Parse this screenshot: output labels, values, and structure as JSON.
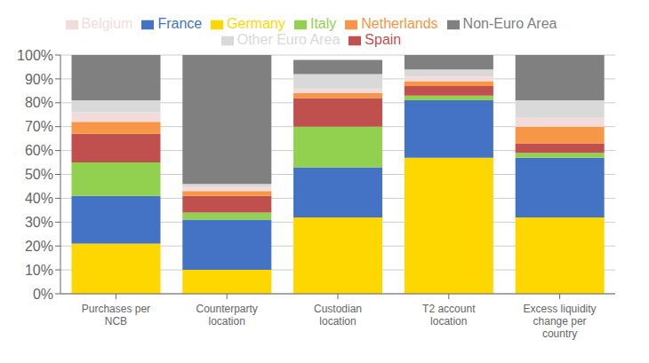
{
  "chart_data": {
    "type": "bar",
    "stacked": true,
    "categories": [
      "Purchases per\nNCB",
      "Counterparty\nlocation",
      "Custodian\nlocation",
      "T2 account\nlocation",
      "Excess liquidity\nchange per\ncountry"
    ],
    "series": [
      {
        "name": "Germany",
        "color": "#FFD700",
        "values": [
          21,
          10,
          32,
          57,
          32
        ]
      },
      {
        "name": "France",
        "color": "#4472C4",
        "values": [
          20,
          21,
          21,
          24,
          25
        ]
      },
      {
        "name": "Italy",
        "color": "#92D050",
        "values": [
          14,
          3,
          17,
          2,
          2
        ]
      },
      {
        "name": "Spain",
        "color": "#C0504D",
        "values": [
          12,
          7,
          12,
          4,
          4
        ]
      },
      {
        "name": "Netherlands",
        "color": "#F79646",
        "values": [
          5,
          2,
          2,
          2,
          7
        ]
      },
      {
        "name": "Belgium",
        "color": "#F2DCDB",
        "values": [
          4,
          2,
          2,
          2,
          4
        ]
      },
      {
        "name": "Other Euro Area",
        "color": "#D9D9D9",
        "values": [
          5,
          1,
          6,
          3,
          7
        ]
      },
      {
        "name": "Non-Euro Area",
        "color": "#808080",
        "values": [
          19,
          54,
          6,
          6,
          19
        ]
      }
    ],
    "ylim": [
      0,
      100
    ],
    "yticks": [
      {
        "value": 0,
        "label": "0%"
      },
      {
        "value": 10,
        "label": "10%"
      },
      {
        "value": 20,
        "label": "20%"
      },
      {
        "value": 30,
        "label": "30%"
      },
      {
        "value": 40,
        "label": "40%"
      },
      {
        "value": 50,
        "label": "50%"
      },
      {
        "value": 60,
        "label": "60%"
      },
      {
        "value": 70,
        "label": "70%"
      },
      {
        "value": 80,
        "label": "80%"
      },
      {
        "value": 90,
        "label": "90%"
      },
      {
        "value": 100,
        "label": "100%"
      }
    ],
    "grid": true,
    "legend": "top"
  }
}
